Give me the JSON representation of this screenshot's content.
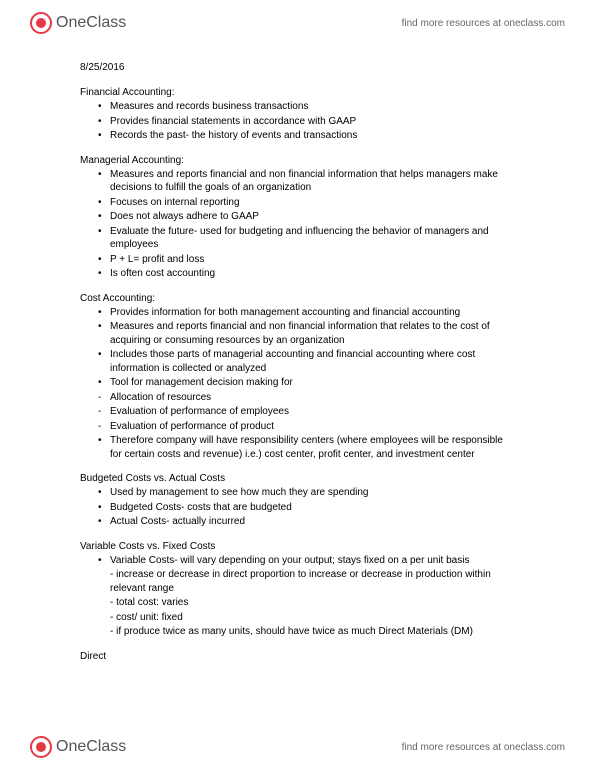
{
  "header": {
    "logo_text": "OneClass",
    "header_link": "find more resources at oneclass.com"
  },
  "date": "8/25/2016",
  "sections": [
    {
      "title": "Financial Accounting:",
      "items": [
        {
          "type": "bullet",
          "text": "Measures and records business transactions"
        },
        {
          "type": "bullet",
          "text": "Provides financial statements in accordance with GAAP"
        },
        {
          "type": "bullet",
          "text": "Records the past- the history of events and transactions"
        }
      ]
    },
    {
      "title": "Managerial Accounting:",
      "items": [
        {
          "type": "bullet",
          "text": "Measures and reports financial and non financial information that helps managers make decisions to fulfill the goals of an organization"
        },
        {
          "type": "bullet",
          "text": "Focuses on internal reporting"
        },
        {
          "type": "bullet",
          "text": "Does not always adhere to GAAP"
        },
        {
          "type": "bullet",
          "text": "Evaluate the future- used for budgeting and influencing the behavior of managers and employees"
        },
        {
          "type": "bullet",
          "text": "P + L= profit and loss"
        },
        {
          "type": "bullet",
          "text": "Is often cost accounting"
        }
      ]
    },
    {
      "title": "Cost Accounting:",
      "items": [
        {
          "type": "bullet",
          "text": "Provides information for both management accounting and financial accounting"
        },
        {
          "type": "bullet",
          "text": "Measures and reports financial and non financial information that relates to the cost of acquiring or consuming resources by an organization"
        },
        {
          "type": "bullet",
          "text": "Includes those parts of managerial accounting and financial accounting where cost information is collected or analyzed"
        },
        {
          "type": "bullet",
          "text": "Tool for management decision making for"
        },
        {
          "type": "dash",
          "text": "Allocation of resources"
        },
        {
          "type": "dash",
          "text": "Evaluation of performance of employees"
        },
        {
          "type": "dash",
          "text": "Evaluation of performance of product"
        },
        {
          "type": "bullet",
          "text": "Therefore company will have responsibility centers (where employees will be responsible for certain costs and revenue) i.e.) cost center, profit center, and investment center"
        }
      ]
    },
    {
      "title": "Budgeted Costs vs. Actual Costs",
      "items": [
        {
          "type": "bullet",
          "text": "Used by management to see how much they are spending"
        },
        {
          "type": "bullet",
          "text": "Budgeted Costs- costs that are budgeted"
        },
        {
          "type": "bullet",
          "text": "Actual Costs- actually incurred"
        }
      ]
    },
    {
      "title": "Variable Costs vs. Fixed Costs",
      "items": [
        {
          "type": "bullet",
          "text": "Variable Costs- will vary depending on your output; stays fixed on a per unit basis"
        },
        {
          "type": "sub-dash",
          "text": "- increase or decrease in direct proportion to increase or decrease in production within relevant range"
        },
        {
          "type": "sub-dash",
          "text": "- total cost: varies"
        },
        {
          "type": "sub-dash",
          "text": "- cost/ unit: fixed"
        },
        {
          "type": "sub-dash",
          "text": "- if produce twice as many units, should have twice as much Direct Materials (DM)"
        }
      ]
    }
  ],
  "direct_label": "Direct",
  "footer": {
    "logo_text": "OneClass",
    "footer_link": "find more resources at oneclass.com"
  }
}
